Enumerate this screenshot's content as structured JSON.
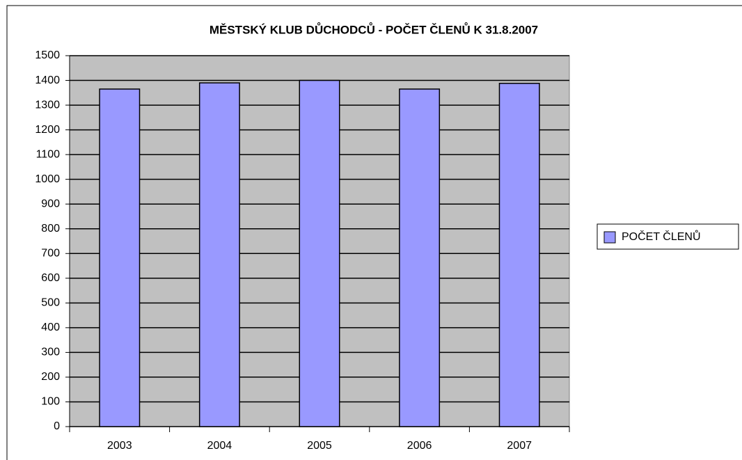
{
  "chart_data": {
    "type": "bar",
    "title": "MĚSTSKÝ KLUB DŮCHODCŮ - POČET ČLENŮ K 31.8.2007",
    "categories": [
      "2003",
      "2004",
      "2005",
      "2006",
      "2007"
    ],
    "series": [
      {
        "name": "POČET ČLENŮ",
        "color": "#9999ff",
        "values": [
          1365,
          1390,
          1400,
          1365,
          1388
        ]
      }
    ],
    "ylim": [
      0,
      1500
    ],
    "yticks": [
      0,
      100,
      200,
      300,
      400,
      500,
      600,
      700,
      800,
      900,
      1000,
      1100,
      1200,
      1300,
      1400,
      1500
    ],
    "grid": true,
    "legend": "right"
  }
}
